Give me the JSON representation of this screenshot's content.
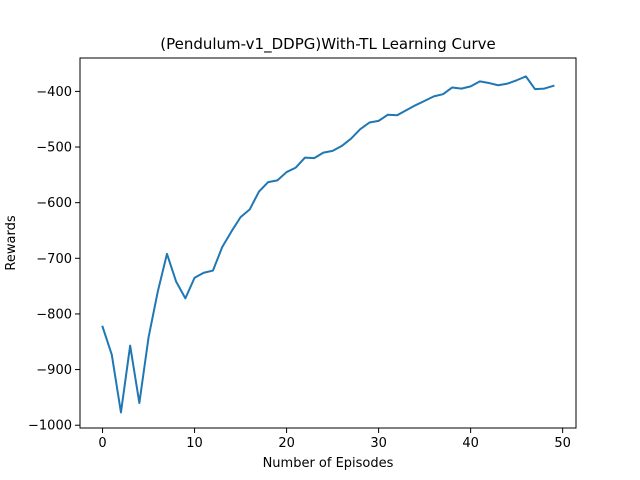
{
  "chart_data": {
    "type": "line",
    "title": "(Pendulum-v1_DDPG)With-TL Learning Curve",
    "xlabel": "Number of Episodes",
    "ylabel": "Rewards",
    "xlim": [
      -2.45,
      51.45
    ],
    "ylim": [
      -1005,
      -340
    ],
    "xticks": [
      0,
      10,
      20,
      30,
      40,
      50
    ],
    "yticks": [
      -1000,
      -900,
      -800,
      -700,
      -600,
      -500,
      -400
    ],
    "xtick_labels": [
      "0",
      "10",
      "20",
      "30",
      "40",
      "50"
    ],
    "ytick_labels": [
      "−1000",
      "−900",
      "−800",
      "−700",
      "−600",
      "−500",
      "−400"
    ],
    "grid": false,
    "series": [
      {
        "color": "#1f77b4",
        "x": [
          0,
          1,
          2,
          3,
          4,
          5,
          6,
          7,
          8,
          9,
          10,
          11,
          12,
          13,
          14,
          15,
          16,
          17,
          18,
          19,
          20,
          21,
          22,
          23,
          24,
          25,
          26,
          27,
          28,
          29,
          30,
          31,
          32,
          33,
          34,
          35,
          36,
          37,
          38,
          39,
          40,
          41,
          42,
          43,
          44,
          45,
          46,
          47,
          48,
          49
        ],
        "y": [
          -823,
          -873,
          -977,
          -857,
          -960,
          -842,
          -760,
          -692,
          -742,
          -772,
          -735,
          -726,
          -722,
          -680,
          -652,
          -626,
          -612,
          -580,
          -563,
          -560,
          -545,
          -537,
          -519,
          -520,
          -510,
          -507,
          -498,
          -485,
          -468,
          -456,
          -453,
          -442,
          -443,
          -434,
          -425,
          -417,
          -409,
          -405,
          -393,
          -395,
          -391,
          -382,
          -385,
          -389,
          -386,
          -380,
          -373,
          -396,
          -395,
          -390
        ]
      }
    ]
  }
}
